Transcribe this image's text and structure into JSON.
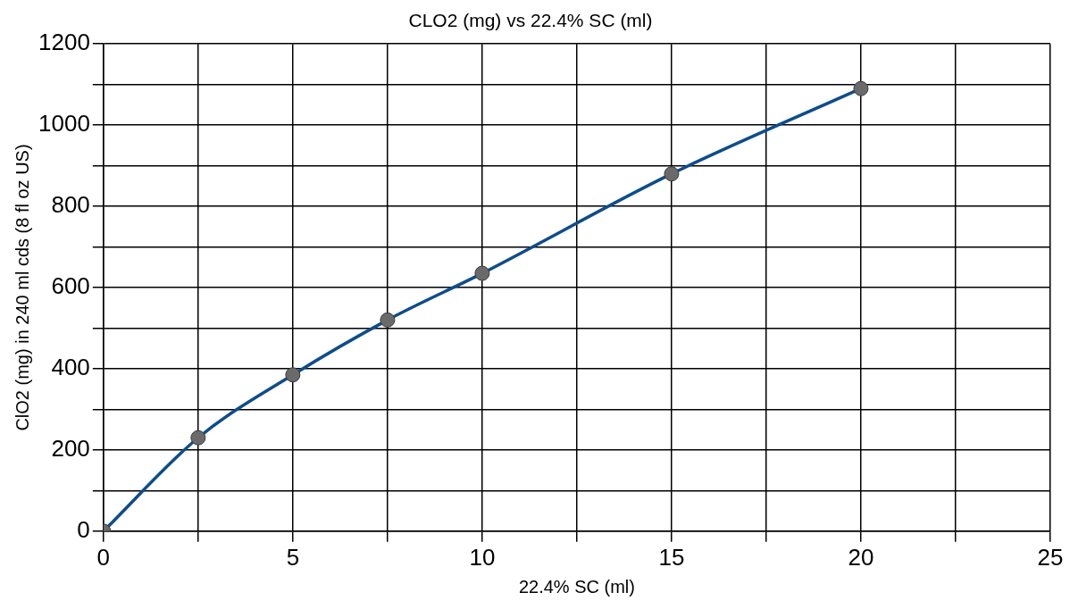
{
  "chart_data": {
    "type": "line",
    "title": "CLO2 (mg) vs 22.4% SC (ml)",
    "xlabel": "22.4% SC (ml)",
    "ylabel": "ClO2 (mg) in 240 ml cds (8 fl oz US)",
    "x": [
      0,
      2.5,
      5,
      7.5,
      10,
      15,
      20
    ],
    "series": [
      {
        "color": "#0e4c8c",
        "values": [
          0,
          230,
          385,
          520,
          635,
          880,
          1090
        ]
      }
    ],
    "xlim": [
      0,
      25
    ],
    "ylim": [
      0,
      1200
    ],
    "xticks": [
      0,
      {
        "value": 2.5,
        "label": null
      },
      5,
      {
        "value": 7.5,
        "label": null
      },
      10,
      {
        "value": 12.5,
        "label": null
      },
      15,
      {
        "value": 17.5,
        "label": null
      },
      20,
      {
        "value": 22.5,
        "label": null
      },
      25
    ],
    "yticks": [
      0,
      {
        "value": 100,
        "label": null
      },
      200,
      {
        "value": 300,
        "label": null
      },
      400,
      {
        "value": 500,
        "label": null
      },
      600,
      {
        "value": 700,
        "label": null
      },
      800,
      {
        "value": 900,
        "label": null
      },
      1000,
      {
        "value": 1100,
        "label": null
      },
      1200
    ],
    "grid": true,
    "legend": false,
    "marker": "circle",
    "line_style": "solid"
  }
}
